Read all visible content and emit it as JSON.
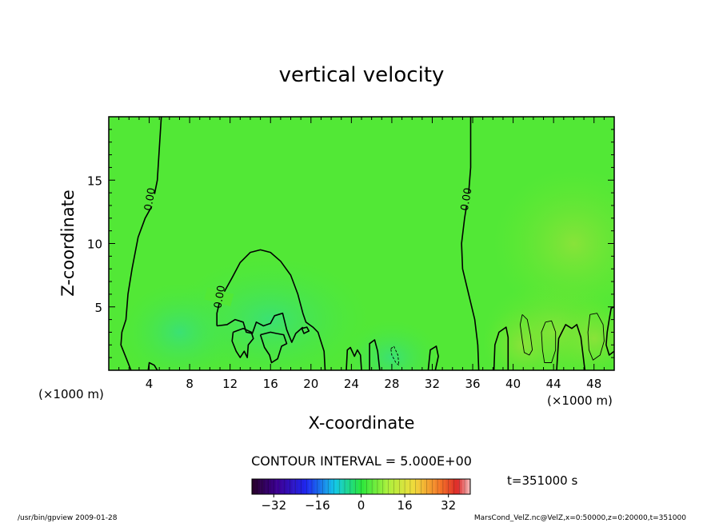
{
  "chart_data": {
    "type": "heatmap",
    "title": "vertical velocity",
    "xlabel": "X-coordinate",
    "ylabel": "Z-coordinate",
    "x_unit": "(×1000 m)",
    "x_unit_right": "(×1000 m)",
    "xlim": [
      0,
      50
    ],
    "ylim": [
      0,
      20
    ],
    "xticks": [
      4,
      8,
      12,
      16,
      20,
      24,
      28,
      32,
      36,
      40,
      44,
      48
    ],
    "yticks": [
      5,
      10,
      15
    ],
    "contour_interval_label": "CONTOUR INTERVAL = 5.000E+00",
    "contour_labels": [
      {
        "text": "0.00",
        "x": 4.0,
        "y": 13.5
      },
      {
        "text": "0.00",
        "x": 35.3,
        "y": 13.5
      },
      {
        "text": "0.00",
        "x": 10.9,
        "y": 5.8
      }
    ],
    "time_label": "t=351000 s",
    "colorbar": {
      "min": -40,
      "max": 40,
      "ticks": [
        -32,
        -16,
        0,
        16,
        32
      ],
      "tick_labels": [
        "−32",
        "−16",
        "0",
        "16",
        "32"
      ]
    },
    "contours": [
      {
        "value": 0,
        "points": [
          [
            5.2,
            20
          ],
          [
            5.0,
            17.5
          ],
          [
            4.8,
            15
          ],
          [
            4.3,
            13
          ],
          [
            3.6,
            12
          ],
          [
            2.9,
            10.5
          ],
          [
            2.3,
            8
          ],
          [
            1.9,
            6
          ],
          [
            1.7,
            4
          ],
          [
            1.3,
            3
          ],
          [
            1.2,
            2
          ],
          [
            1.7,
            1
          ],
          [
            2.2,
            0
          ]
        ]
      },
      {
        "value": 0,
        "points": [
          [
            35.8,
            20
          ],
          [
            35.8,
            16
          ],
          [
            35.6,
            14
          ],
          [
            35.2,
            12
          ],
          [
            34.9,
            10
          ],
          [
            35.0,
            8
          ],
          [
            35.6,
            6
          ],
          [
            36.2,
            4
          ],
          [
            36.5,
            2
          ],
          [
            36.6,
            0
          ]
        ]
      },
      {
        "value": 0,
        "points": [
          [
            3.9,
            0
          ],
          [
            4.0,
            0.6
          ],
          [
            4.5,
            0.4
          ],
          [
            4.8,
            0
          ]
        ]
      },
      {
        "value": 0,
        "points": [
          [
            10.7,
            3.5
          ],
          [
            10.7,
            4.5
          ],
          [
            11.0,
            5.5
          ],
          [
            11.5,
            6.3
          ],
          [
            12.2,
            7.3
          ],
          [
            13.0,
            8.5
          ],
          [
            14.0,
            9.3
          ],
          [
            15.0,
            9.5
          ],
          [
            16.0,
            9.3
          ],
          [
            17.0,
            8.6
          ],
          [
            18.0,
            7.5
          ],
          [
            18.7,
            6.0
          ],
          [
            19.2,
            4.5
          ],
          [
            19.5,
            3.8
          ],
          [
            20.2,
            3.4
          ],
          [
            20.7,
            3.0
          ],
          [
            21.3,
            1.5
          ],
          [
            21.4,
            0
          ]
        ]
      },
      {
        "value": 0,
        "points": [
          [
            10.7,
            3.5
          ],
          [
            11.7,
            3.6
          ],
          [
            12.5,
            4.0
          ],
          [
            13.3,
            3.8
          ],
          [
            13.6,
            3.0
          ],
          [
            14.2,
            2.9
          ],
          [
            14.6,
            3.8
          ],
          [
            15.3,
            3.5
          ],
          [
            16.0,
            3.7
          ],
          [
            16.4,
            4.3
          ],
          [
            17.2,
            4.5
          ],
          [
            17.6,
            3.2
          ],
          [
            18.1,
            2.2
          ],
          [
            18.5,
            2.9
          ],
          [
            19.2,
            3.4
          ]
        ]
      },
      {
        "value": 0,
        "points": [
          [
            12.3,
            3.0
          ],
          [
            12.2,
            2.3
          ],
          [
            12.6,
            1.5
          ],
          [
            13.0,
            1.0
          ],
          [
            13.4,
            1.5
          ],
          [
            13.7,
            1.0
          ],
          [
            13.8,
            2.0
          ],
          [
            14.3,
            2.5
          ],
          [
            14.1,
            3.0
          ],
          [
            13.3,
            3.3
          ],
          [
            12.3,
            3.0
          ]
        ]
      },
      {
        "value": 0,
        "points": [
          [
            15.0,
            2.8
          ],
          [
            15.4,
            1.8
          ],
          [
            15.9,
            1.2
          ],
          [
            16.1,
            0.6
          ],
          [
            16.7,
            0.9
          ],
          [
            17.1,
            1.9
          ],
          [
            17.6,
            2.1
          ],
          [
            17.3,
            2.8
          ],
          [
            16.6,
            2.9
          ],
          [
            16.0,
            3.0
          ],
          [
            15.0,
            2.8
          ]
        ]
      },
      {
        "value": 0,
        "points": [
          [
            19.1,
            3.3
          ],
          [
            19.3,
            2.9
          ],
          [
            19.8,
            3.1
          ],
          [
            19.6,
            3.4
          ],
          [
            19.1,
            3.3
          ]
        ]
      },
      {
        "value": 0,
        "points": [
          [
            23.5,
            0
          ],
          [
            23.6,
            1.6
          ],
          [
            23.9,
            1.8
          ],
          [
            24.3,
            1.1
          ],
          [
            24.6,
            1.6
          ],
          [
            24.9,
            1.2
          ],
          [
            25.0,
            0
          ]
        ]
      },
      {
        "value": 0,
        "points": [
          [
            25.8,
            0
          ],
          [
            25.8,
            2.1
          ],
          [
            26.3,
            2.4
          ],
          [
            26.6,
            1.5
          ],
          [
            26.8,
            0
          ]
        ]
      },
      {
        "value": 0,
        "points": [
          [
            31.6,
            0
          ],
          [
            31.8,
            1.6
          ],
          [
            32.4,
            1.9
          ],
          [
            32.6,
            1.1
          ],
          [
            32.3,
            0
          ]
        ]
      },
      {
        "value": 0,
        "points": [
          [
            38.1,
            0
          ],
          [
            38.2,
            2.0
          ],
          [
            38.6,
            3.0
          ],
          [
            39.3,
            3.4
          ],
          [
            39.5,
            2.6
          ],
          [
            39.5,
            0
          ]
        ]
      },
      {
        "value": 0,
        "points": [
          [
            44.3,
            0
          ],
          [
            44.5,
            2.5
          ],
          [
            45.2,
            3.6
          ],
          [
            45.8,
            3.3
          ],
          [
            46.3,
            3.6
          ],
          [
            46.7,
            2.6
          ],
          [
            47.1,
            0
          ]
        ]
      },
      {
        "value": 0,
        "points": [
          [
            50,
            5.0
          ],
          [
            49.7,
            4.9
          ],
          [
            49.5,
            4.0
          ],
          [
            49.3,
            3.0
          ],
          [
            49.2,
            2.0
          ],
          [
            49.5,
            1.2
          ],
          [
            50,
            1.5
          ]
        ]
      },
      {
        "value": 5,
        "dashed": false,
        "thin": true,
        "points": [
          [
            40.9,
            4.4
          ],
          [
            41.4,
            4.0
          ],
          [
            41.7,
            2.8
          ],
          [
            41.9,
            1.6
          ],
          [
            41.6,
            1.2
          ],
          [
            41.1,
            1.4
          ],
          [
            40.9,
            2.4
          ],
          [
            40.7,
            3.6
          ],
          [
            40.9,
            4.4
          ]
        ]
      },
      {
        "value": 5,
        "dashed": false,
        "thin": true,
        "points": [
          [
            43.2,
            3.8
          ],
          [
            43.8,
            3.9
          ],
          [
            44.2,
            3.0
          ],
          [
            44.2,
            1.6
          ],
          [
            43.8,
            0.6
          ],
          [
            43.1,
            0.6
          ],
          [
            42.9,
            1.6
          ],
          [
            42.8,
            3.0
          ],
          [
            43.2,
            3.8
          ]
        ]
      },
      {
        "value": 5,
        "dashed": false,
        "thin": true,
        "points": [
          [
            47.6,
            4.4
          ],
          [
            48.3,
            4.5
          ],
          [
            48.9,
            3.6
          ],
          [
            49.0,
            2.3
          ],
          [
            48.6,
            1.2
          ],
          [
            47.9,
            0.8
          ],
          [
            47.5,
            1.6
          ],
          [
            47.4,
            3.0
          ],
          [
            47.6,
            4.4
          ]
        ]
      },
      {
        "value": -5,
        "dashed": true,
        "thin": true,
        "points": [
          [
            27.9,
            1.7
          ],
          [
            28.2,
            1.9
          ],
          [
            28.6,
            1.2
          ],
          [
            28.7,
            0.4
          ],
          [
            28.4,
            0.6
          ],
          [
            28.0,
            1.2
          ],
          [
            27.9,
            1.7
          ]
        ]
      }
    ],
    "field_hint": "near-zero vertical velocity everywhere; slight positive (yellow-green) patches x>38 below z=5, slight negative (cyan) near x≈28, z≈1"
  },
  "footer": {
    "left": "/usr/bin/gpview   2009-01-28",
    "right": "MarsCond_VelZ.nc@VelZ,x=0:50000,z=0:20000,t=351000"
  }
}
